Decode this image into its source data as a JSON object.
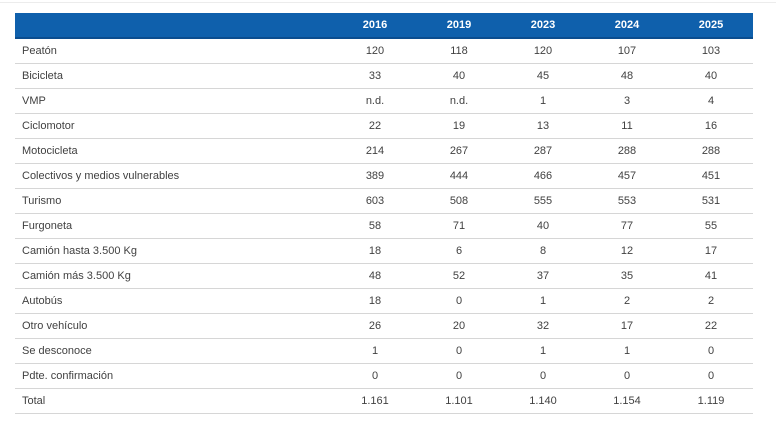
{
  "colors": {
    "header_bg": "#0f60ac",
    "header_border": "#0b4d8f",
    "header_text": "#ffffff",
    "row_border": "#d6d6d6",
    "body_text": "#414141"
  },
  "table": {
    "years": [
      "2016",
      "2019",
      "2023",
      "2024",
      "2025"
    ],
    "rows": [
      {
        "label": "Peatón",
        "values": [
          "120",
          "118",
          "120",
          "107",
          "103"
        ]
      },
      {
        "label": "Bicicleta",
        "values": [
          "33",
          "40",
          "45",
          "48",
          "40"
        ]
      },
      {
        "label": "VMP",
        "values": [
          "n.d.",
          "n.d.",
          "1",
          "3",
          "4"
        ]
      },
      {
        "label": "Ciclomotor",
        "values": [
          "22",
          "19",
          "13",
          "11",
          "16"
        ]
      },
      {
        "label": "Motocicleta",
        "values": [
          "214",
          "267",
          "287",
          "288",
          "288"
        ]
      },
      {
        "label": "Colectivos y medios vulnerables",
        "values": [
          "389",
          "444",
          "466",
          "457",
          "451"
        ]
      },
      {
        "label": "Turismo",
        "values": [
          "603",
          "508",
          "555",
          "553",
          "531"
        ]
      },
      {
        "label": "Furgoneta",
        "values": [
          "58",
          "71",
          "40",
          "77",
          "55"
        ]
      },
      {
        "label": "Camión hasta 3.500 Kg",
        "values": [
          "18",
          "6",
          "8",
          "12",
          "17"
        ]
      },
      {
        "label": "Camión más 3.500 Kg",
        "values": [
          "48",
          "52",
          "37",
          "35",
          "41"
        ]
      },
      {
        "label": "Autobús",
        "values": [
          "18",
          "0",
          "1",
          "2",
          "2"
        ]
      },
      {
        "label": "Otro vehículo",
        "values": [
          "26",
          "20",
          "32",
          "17",
          "22"
        ]
      },
      {
        "label": "Se desconoce",
        "values": [
          "1",
          "0",
          "1",
          "1",
          "0"
        ]
      },
      {
        "label": "Pdte. confirmación",
        "values": [
          "0",
          "0",
          "0",
          "0",
          "0"
        ]
      },
      {
        "label": "Total",
        "values": [
          "1.161",
          "1.101",
          "1.140",
          "1.154",
          "1.119"
        ]
      }
    ]
  },
  "chart_data": {
    "type": "table",
    "title": "",
    "categories": [
      "2016",
      "2019",
      "2023",
      "2024",
      "2025"
    ],
    "series": [
      {
        "name": "Peatón",
        "values": [
          120,
          118,
          120,
          107,
          103
        ]
      },
      {
        "name": "Bicicleta",
        "values": [
          33,
          40,
          45,
          48,
          40
        ]
      },
      {
        "name": "VMP",
        "values": [
          "n.d.",
          "n.d.",
          1,
          3,
          4
        ]
      },
      {
        "name": "Ciclomotor",
        "values": [
          22,
          19,
          13,
          11,
          16
        ]
      },
      {
        "name": "Motocicleta",
        "values": [
          214,
          267,
          287,
          288,
          288
        ]
      },
      {
        "name": "Colectivos y medios vulnerables",
        "values": [
          389,
          444,
          466,
          457,
          451
        ]
      },
      {
        "name": "Turismo",
        "values": [
          603,
          508,
          555,
          553,
          531
        ]
      },
      {
        "name": "Furgoneta",
        "values": [
          58,
          71,
          40,
          77,
          55
        ]
      },
      {
        "name": "Camión hasta 3.500 Kg",
        "values": [
          18,
          6,
          8,
          12,
          17
        ]
      },
      {
        "name": "Camión más 3.500 Kg",
        "values": [
          48,
          52,
          37,
          35,
          41
        ]
      },
      {
        "name": "Autobús",
        "values": [
          18,
          0,
          1,
          2,
          2
        ]
      },
      {
        "name": "Otro vehículo",
        "values": [
          26,
          20,
          32,
          17,
          22
        ]
      },
      {
        "name": "Se desconoce",
        "values": [
          1,
          0,
          1,
          1,
          0
        ]
      },
      {
        "name": "Pdte. confirmación",
        "values": [
          0,
          0,
          0,
          0,
          0
        ]
      },
      {
        "name": "Total",
        "values": [
          "1.161",
          "1.101",
          "1.140",
          "1.154",
          "1.119"
        ]
      }
    ]
  }
}
